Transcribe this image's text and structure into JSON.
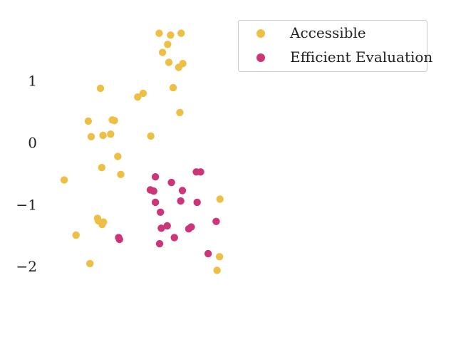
{
  "chart_data": {
    "type": "scatter",
    "title": "",
    "xlabel": "",
    "ylabel": "",
    "xlim": [
      -2.7,
      2.7
    ],
    "ylim": [
      -2.55,
      2.1
    ],
    "yticks": [
      1,
      0,
      -1,
      -2
    ],
    "ytick_labels": [
      "1",
      "0",
      "−1",
      "−2"
    ],
    "grid": false,
    "legend_position": "top-right",
    "series": [
      {
        "name": "Accessible",
        "color": "#EDBF45",
        "points": [
          [
            -0.01,
            1.77
          ],
          [
            0.26,
            1.74
          ],
          [
            0.51,
            1.77
          ],
          [
            0.19,
            1.59
          ],
          [
            0.07,
            1.46
          ],
          [
            0.22,
            1.3
          ],
          [
            0.55,
            1.28
          ],
          [
            0.45,
            1.22
          ],
          [
            0.32,
            0.89
          ],
          [
            -1.4,
            0.88
          ],
          [
            -0.39,
            0.8
          ],
          [
            -0.52,
            0.74
          ],
          [
            0.48,
            0.49
          ],
          [
            -1.69,
            0.35
          ],
          [
            -1.12,
            0.37
          ],
          [
            -1.07,
            0.36
          ],
          [
            -1.62,
            0.1
          ],
          [
            -1.34,
            0.12
          ],
          [
            -1.16,
            0.14
          ],
          [
            -0.21,
            0.11
          ],
          [
            -0.99,
            -0.22
          ],
          [
            -1.37,
            -0.4
          ],
          [
            -0.92,
            -0.51
          ],
          [
            -2.26,
            -0.6
          ],
          [
            1.43,
            -0.91
          ],
          [
            -1.47,
            -1.22
          ],
          [
            -1.45,
            -1.26
          ],
          [
            -1.33,
            -1.28
          ],
          [
            -1.36,
            -1.32
          ],
          [
            -1.98,
            -1.49
          ],
          [
            1.42,
            -1.84
          ],
          [
            -1.65,
            -1.95
          ],
          [
            1.36,
            -2.06
          ]
        ]
      },
      {
        "name": "Efficient Evaluation",
        "color": "#CC3577",
        "points": [
          [
            -0.1,
            -0.55
          ],
          [
            0.28,
            -0.64
          ],
          [
            0.87,
            -0.47
          ],
          [
            0.97,
            -0.47
          ],
          [
            -0.22,
            -0.76
          ],
          [
            -0.14,
            -0.78
          ],
          [
            0.54,
            -0.77
          ],
          [
            -0.1,
            -0.96
          ],
          [
            0.5,
            -0.94
          ],
          [
            0.89,
            -0.96
          ],
          [
            0.02,
            -1.12
          ],
          [
            1.34,
            -1.27
          ],
          [
            0.18,
            -1.34
          ],
          [
            0.04,
            -1.38
          ],
          [
            0.75,
            -1.36
          ],
          [
            0.69,
            -1.39
          ],
          [
            -0.97,
            -1.53
          ],
          [
            -0.95,
            -1.56
          ],
          [
            0.35,
            -1.53
          ],
          [
            0.0,
            -1.63
          ],
          [
            1.15,
            -1.79
          ]
        ]
      }
    ]
  }
}
